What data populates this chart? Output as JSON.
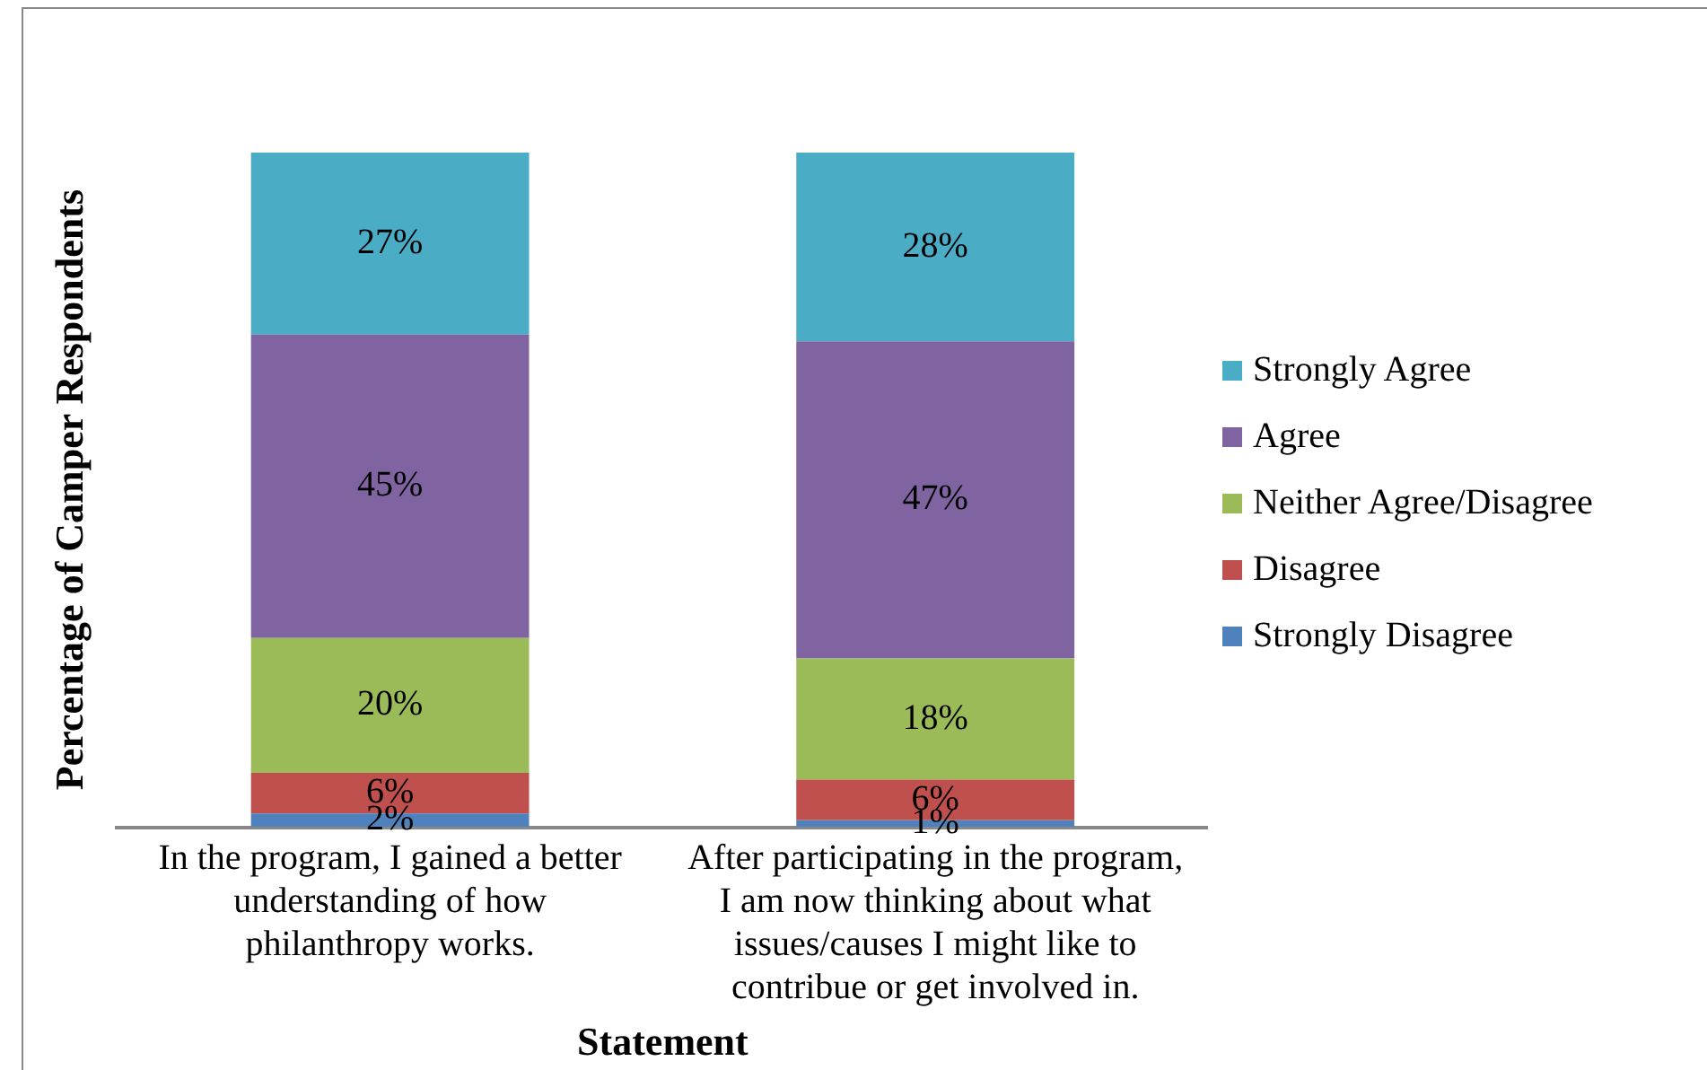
{
  "chart_data": {
    "type": "bar",
    "stacked": true,
    "xlabel": "Statement",
    "ylabel": "Percentage of Camper Respondents",
    "categories": [
      "In the program, I gained a better understanding of how philanthropy works.",
      "After participating in the program, I am now thinking about what issues/causes I might like to contribue or get involved in."
    ],
    "series": [
      {
        "name": "Strongly Disagree",
        "color": "#4f81bd",
        "values": [
          2,
          1
        ],
        "value_labels": [
          "2%",
          "1%"
        ]
      },
      {
        "name": "Disagree",
        "color": "#c0504d",
        "values": [
          6,
          6
        ],
        "value_labels": [
          "6%",
          "6%"
        ]
      },
      {
        "name": "Neither Agree/Disagree",
        "color": "#9bbb59",
        "values": [
          20,
          18
        ],
        "value_labels": [
          "20%",
          "18%"
        ]
      },
      {
        "name": "Agree",
        "color": "#8064a2",
        "values": [
          45,
          47
        ],
        "value_labels": [
          "45%",
          "47%"
        ]
      },
      {
        "name": "Strongly Agree",
        "color": "#4bacc6",
        "values": [
          27,
          28
        ],
        "value_labels": [
          "27%",
          "28%"
        ]
      }
    ],
    "legend": "right",
    "grid": false,
    "tick_labels": "x"
  }
}
